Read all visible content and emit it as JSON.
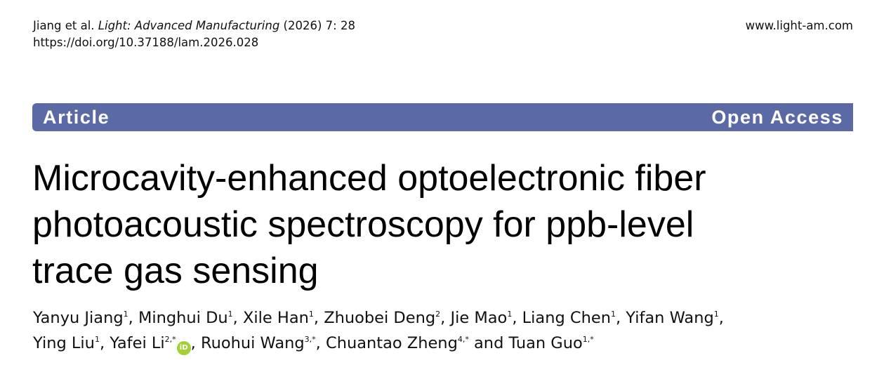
{
  "header": {
    "citation_authors": "Jiang et al.",
    "journal": "Light: Advanced Manufacturing",
    "year_volume": "(2026) 7: 28",
    "doi": "https://doi.org/10.37188/lam.2026.028",
    "website": "www.light-am.com"
  },
  "banner": {
    "type_label": "Article",
    "access_label": "Open Access",
    "color": "#5b6aa5"
  },
  "title": {
    "line1": "Microcavity-enhanced optoelectronic fiber",
    "line2": "photoacoustic spectroscopy for ppb-level",
    "line3": "trace gas sensing"
  },
  "authors": [
    {
      "name": "Yanyu Jiang",
      "aff": "1"
    },
    {
      "name": "Minghui Du",
      "aff": "1"
    },
    {
      "name": "Xile Han",
      "aff": "1"
    },
    {
      "name": "Zhuobei Deng",
      "aff": "2"
    },
    {
      "name": "Jie Mao",
      "aff": "1"
    },
    {
      "name": "Liang Chen",
      "aff": "1"
    },
    {
      "name": "Yifan Wang",
      "aff": "1"
    },
    {
      "name": "Ying Liu",
      "aff": "1"
    },
    {
      "name": "Yafei Li",
      "aff": "2,*"
    },
    {
      "name": "Ruohui Wang",
      "aff": "3,*"
    },
    {
      "name": "Chuantao Zheng",
      "aff": "4,*"
    },
    {
      "name": "Tuan Guo",
      "aff": "1,*"
    }
  ],
  "authors_conjunction": "and",
  "orcid": {
    "icon": "orcid-icon",
    "label": "iD",
    "color": "#a6ce39"
  }
}
